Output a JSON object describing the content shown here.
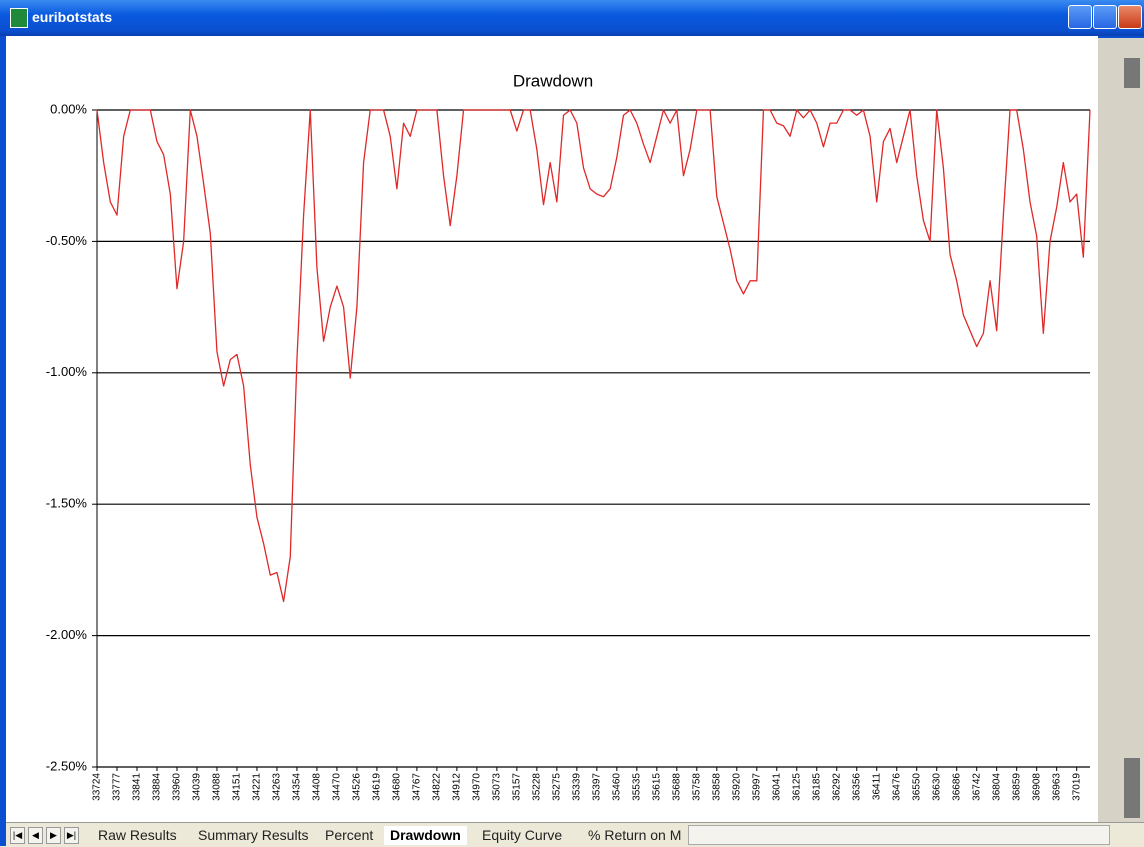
{
  "window": {
    "title": "euribotstats"
  },
  "sheet_tabs": [
    "Raw Results",
    "Summary Results",
    "Percent",
    "Drawdown",
    "Equity Curve",
    "% Return on M"
  ],
  "chart_data": {
    "type": "line",
    "title": "Drawdown",
    "categories": [
      "33724",
      null,
      null,
      "33777",
      null,
      null,
      "33841",
      null,
      null,
      "33884",
      null,
      null,
      "33960",
      null,
      null,
      "34039",
      null,
      null,
      "34088",
      null,
      null,
      "34151",
      null,
      null,
      "34221",
      null,
      null,
      "34263",
      null,
      null,
      "34354",
      null,
      null,
      "34408",
      null,
      null,
      "34470",
      null,
      null,
      "34526",
      null,
      null,
      "34619",
      null,
      null,
      "34680",
      null,
      null,
      "34767",
      null,
      null,
      "34822",
      null,
      null,
      "34912",
      null,
      null,
      "34970",
      null,
      null,
      "35073",
      null,
      null,
      "35157",
      null,
      null,
      "35228",
      null,
      null,
      "35275",
      null,
      null,
      "35339",
      null,
      null,
      "35397",
      null,
      null,
      "35460",
      null,
      null,
      "35535",
      null,
      null,
      "35615",
      null,
      null,
      "35688",
      null,
      null,
      "35758",
      null,
      null,
      "35858",
      null,
      null,
      "35920",
      null,
      null,
      "35997",
      null,
      null,
      "36041",
      null,
      null,
      "36125",
      null,
      null,
      "36185",
      null,
      null,
      "36292",
      null,
      null,
      "36356",
      null,
      null,
      "36411",
      null,
      null,
      "36476",
      null,
      null,
      "36550",
      null,
      null,
      "36630",
      null,
      null,
      "36686",
      null,
      null,
      "36742",
      null,
      null,
      "36804",
      null,
      null,
      "36859",
      null,
      null,
      "36908",
      null,
      null,
      "36963",
      null,
      null,
      "37019",
      null,
      null
    ],
    "series": [
      {
        "color": "#e02828",
        "values": [
          0,
          -0.2,
          -0.35,
          -0.4,
          -0.1,
          0,
          0,
          0,
          0,
          -0.12,
          -0.17,
          -0.32,
          -0.68,
          -0.5,
          0,
          -0.1,
          -0.28,
          -0.47,
          -0.92,
          -1.05,
          -0.95,
          -0.93,
          -1.05,
          -1.35,
          -1.55,
          -1.65,
          -1.77,
          -1.76,
          -1.87,
          -1.7,
          -0.95,
          -0.4,
          0,
          -0.6,
          -0.88,
          -0.75,
          -0.67,
          -0.75,
          -1.02,
          -0.75,
          -0.2,
          0,
          0,
          0,
          -0.1,
          -0.3,
          -0.05,
          -0.1,
          0,
          0,
          0,
          0,
          -0.25,
          -0.44,
          -0.25,
          0,
          0,
          0,
          0,
          0,
          0,
          0,
          0,
          -0.08,
          0,
          0,
          -0.15,
          -0.36,
          -0.2,
          -0.35,
          -0.02,
          0,
          -0.05,
          -0.22,
          -0.3,
          -0.32,
          -0.33,
          -0.3,
          -0.18,
          -0.02,
          0,
          -0.05,
          -0.13,
          -0.2,
          -0.1,
          0,
          -0.05,
          0,
          -0.25,
          -0.15,
          0,
          0,
          0,
          -0.33,
          -0.43,
          -0.53,
          -0.65,
          -0.7,
          -0.65,
          -0.65,
          0,
          0,
          -0.05,
          -0.06,
          -0.1,
          0,
          -0.03,
          0,
          -0.05,
          -0.14,
          -0.05,
          -0.05,
          0,
          0,
          -0.02,
          0,
          -0.1,
          -0.35,
          -0.12,
          -0.07,
          -0.2,
          -0.1,
          0,
          -0.25,
          -0.42,
          -0.5,
          0,
          -0.22,
          -0.55,
          -0.65,
          -0.78,
          -0.84,
          -0.9,
          -0.85,
          -0.65,
          -0.84,
          -0.4,
          0,
          0,
          -0.15,
          -0.35,
          -0.48,
          -0.85,
          -0.5,
          -0.37,
          -0.2,
          -0.35,
          -0.32,
          -0.56,
          0
        ]
      }
    ],
    "ylim": [
      -2.5,
      0
    ],
    "yticks": [
      {
        "value": -2.5,
        "label": "-2.50%"
      },
      {
        "value": -2,
        "label": "-2.00%"
      },
      {
        "value": -1.5,
        "label": "-1.50%"
      },
      {
        "value": -1,
        "label": "-1.00%"
      },
      {
        "value": -0.5,
        "label": "-0.50%"
      },
      {
        "value": 0,
        "label": "0.00%"
      }
    ],
    "grid": true
  }
}
